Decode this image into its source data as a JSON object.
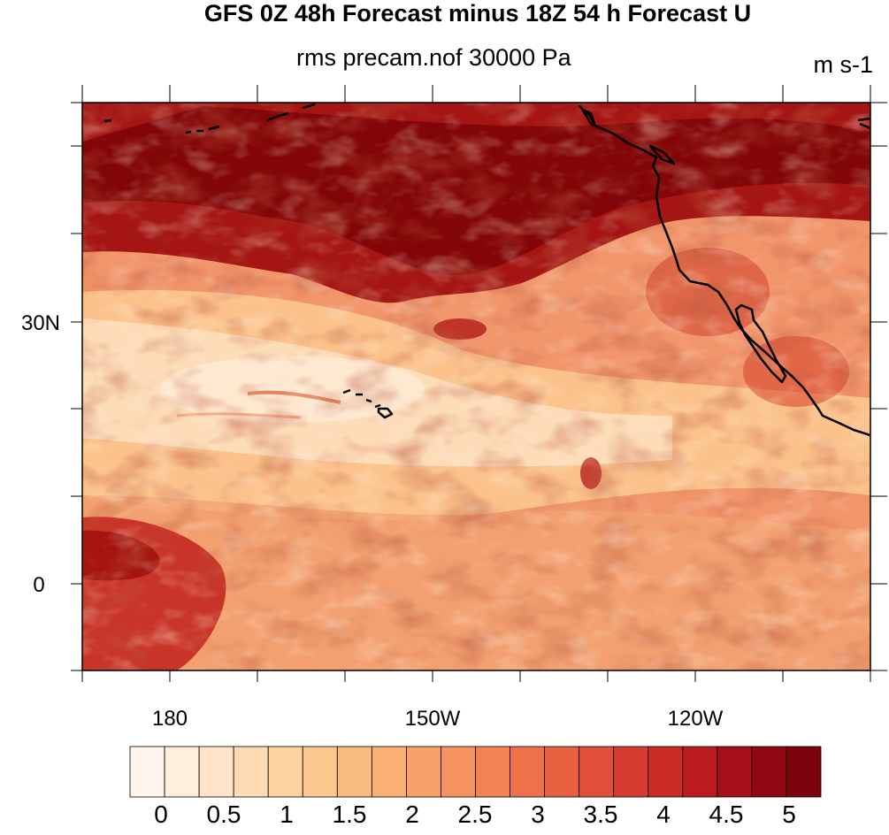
{
  "map": {
    "title": "GFS 0Z 48h Forecast minus 18Z 54 h Forecast U",
    "subtitle": "rms precam.nof 30000 Pa",
    "units": "m s-1",
    "lat_labels": [
      "30N",
      "0"
    ],
    "lon_labels": [
      "180",
      "150W",
      "120W"
    ],
    "extent": {
      "lon_min": -190,
      "lon_max": -100,
      "lat_min": -10,
      "lat_max": 55
    },
    "colors": {
      "coastline": "#000000",
      "palette": [
        "#fff5ec",
        "#feeedc",
        "#fee5c9",
        "#fddcb4",
        "#fdd2a0",
        "#fcc88e",
        "#fbbd7f",
        "#fab074",
        "#f8a169",
        "#f6925f",
        "#f38254",
        "#ef714a",
        "#e96041",
        "#e14e39",
        "#d63c30",
        "#c92b27",
        "#b91b1f",
        "#a60f18",
        "#920812",
        "#7d040d"
      ]
    }
  },
  "colorbar": {
    "labels": [
      "0",
      "0.5",
      "1",
      "1.5",
      "2",
      "2.5",
      "3",
      "3.5",
      "4",
      "4.5",
      "5"
    ],
    "min": 0,
    "max": 5.25,
    "step": 0.25
  }
}
